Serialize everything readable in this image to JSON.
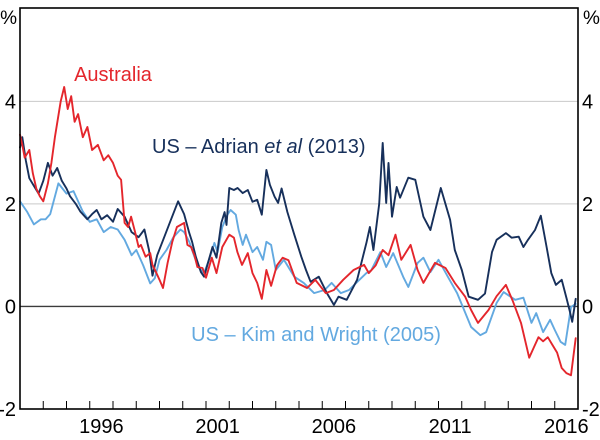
{
  "figure": {
    "percent_left": "%",
    "percent_right": "%"
  },
  "series_labels": {
    "australia": "Australia",
    "adrian_prefix": "US – Adrian ",
    "adrian_italic": "et al",
    "adrian_suffix": " (2013)",
    "kim": "US – Kim and Wright (2005)"
  },
  "colors": {
    "australia": "#E4262C",
    "adrian": "#17305B",
    "kim": "#63A9E0",
    "gridline": "#C9C9C9",
    "zero_line": "#3C3C3C",
    "frame": "#000000"
  },
  "chart_data": {
    "type": "line",
    "unit": "%",
    "xlim": [
      1993,
      2017
    ],
    "ylim": [
      -2,
      5.82
    ],
    "ytick_values": [
      -2,
      0,
      2,
      4
    ],
    "ytick_labels": [
      "-2",
      "0",
      "2",
      "4"
    ],
    "grid_values": [
      2,
      4
    ],
    "zero_line_value": 0,
    "xtick_label_years": [
      "1996",
      "2001",
      "2006",
      "2011",
      "2016"
    ],
    "xtick_label_positions": [
      1996.5,
      2001.5,
      2006.5,
      2011.5,
      2016.5
    ],
    "minor_tick_years_start": 1994,
    "minor_tick_years_end": 2016,
    "legend_position": "inline-labels",
    "grid": "horizontal-only",
    "series": [
      {
        "name": "US – Kim and Wright (2005)",
        "color": "#63A9E0",
        "points": [
          [
            1993.0,
            2.05
          ],
          [
            1993.3,
            1.85
          ],
          [
            1993.6,
            1.6
          ],
          [
            1993.9,
            1.7
          ],
          [
            1994.1,
            1.7
          ],
          [
            1994.3,
            1.8
          ],
          [
            1994.65,
            2.4
          ],
          [
            1995.0,
            2.2
          ],
          [
            1995.3,
            2.25
          ],
          [
            1995.7,
            1.85
          ],
          [
            1996.0,
            1.65
          ],
          [
            1996.3,
            1.7
          ],
          [
            1996.6,
            1.45
          ],
          [
            1996.9,
            1.55
          ],
          [
            1997.2,
            1.5
          ],
          [
            1997.5,
            1.3
          ],
          [
            1997.8,
            1.0
          ],
          [
            1998.0,
            1.1
          ],
          [
            1998.3,
            0.8
          ],
          [
            1998.6,
            0.45
          ],
          [
            1998.8,
            0.55
          ],
          [
            1999.0,
            0.91
          ],
          [
            1999.3,
            1.1
          ],
          [
            1999.6,
            1.35
          ],
          [
            1999.9,
            1.5
          ],
          [
            2000.06,
            1.45
          ],
          [
            2000.28,
            1.26
          ],
          [
            2000.5,
            0.97
          ],
          [
            2000.7,
            0.75
          ],
          [
            2000.92,
            0.65
          ],
          [
            2001.13,
            0.91
          ],
          [
            2001.36,
            1.24
          ],
          [
            2001.5,
            1.06
          ],
          [
            2001.7,
            1.55
          ],
          [
            2001.92,
            1.79
          ],
          [
            2002.06,
            1.88
          ],
          [
            2002.28,
            1.79
          ],
          [
            2002.4,
            1.49
          ],
          [
            2002.58,
            1.2
          ],
          [
            2002.72,
            1.4
          ],
          [
            2003.0,
            1.06
          ],
          [
            2003.2,
            1.16
          ],
          [
            2003.45,
            0.91
          ],
          [
            2003.6,
            1.26
          ],
          [
            2003.8,
            1.2
          ],
          [
            2004.0,
            0.71
          ],
          [
            2004.35,
            0.91
          ],
          [
            2004.8,
            0.58
          ],
          [
            2005.2,
            0.46
          ],
          [
            2005.65,
            0.26
          ],
          [
            2006.1,
            0.32
          ],
          [
            2006.4,
            0.46
          ],
          [
            2006.8,
            0.26
          ],
          [
            2007.15,
            0.32
          ],
          [
            2007.6,
            0.52
          ],
          [
            2007.9,
            0.65
          ],
          [
            2008.1,
            0.7
          ],
          [
            2008.5,
            1.06
          ],
          [
            2008.75,
            0.77
          ],
          [
            2009.05,
            1.04
          ],
          [
            2009.5,
            0.56
          ],
          [
            2009.7,
            0.38
          ],
          [
            2010.1,
            0.85
          ],
          [
            2010.35,
            0.95
          ],
          [
            2010.65,
            0.67
          ],
          [
            2011.0,
            0.91
          ],
          [
            2011.4,
            0.58
          ],
          [
            2011.8,
            0.26
          ],
          [
            2012.1,
            -0.07
          ],
          [
            2012.4,
            -0.4
          ],
          [
            2012.8,
            -0.56
          ],
          [
            2013.05,
            -0.5
          ],
          [
            2013.5,
            0.07
          ],
          [
            2013.8,
            0.28
          ],
          [
            2014.3,
            0.13
          ],
          [
            2014.65,
            0.17
          ],
          [
            2015.0,
            -0.32
          ],
          [
            2015.2,
            -0.13
          ],
          [
            2015.5,
            -0.5
          ],
          [
            2015.8,
            -0.26
          ],
          [
            2016.0,
            -0.46
          ],
          [
            2016.25,
            -0.69
          ],
          [
            2016.45,
            -0.75
          ],
          [
            2016.7,
            -0.01
          ],
          [
            2016.9,
            0.05
          ]
        ]
      },
      {
        "name": "US – Adrian et al (2013)",
        "color": "#17305B",
        "points": [
          [
            1993.0,
            3.1
          ],
          [
            1993.1,
            3.3
          ],
          [
            1993.25,
            2.85
          ],
          [
            1993.4,
            2.5
          ],
          [
            1993.6,
            2.35
          ],
          [
            1993.8,
            2.2
          ],
          [
            1994.0,
            2.45
          ],
          [
            1994.2,
            2.8
          ],
          [
            1994.4,
            2.55
          ],
          [
            1994.6,
            2.7
          ],
          [
            1994.8,
            2.45
          ],
          [
            1995.0,
            2.3
          ],
          [
            1995.15,
            2.15
          ],
          [
            1995.4,
            2.0
          ],
          [
            1995.6,
            1.85
          ],
          [
            1995.9,
            1.7
          ],
          [
            1996.1,
            1.8
          ],
          [
            1996.3,
            1.88
          ],
          [
            1996.5,
            1.7
          ],
          [
            1996.75,
            1.78
          ],
          [
            1997.0,
            1.65
          ],
          [
            1997.2,
            1.9
          ],
          [
            1997.5,
            1.75
          ],
          [
            1997.8,
            1.45
          ],
          [
            1998.1,
            1.35
          ],
          [
            1998.35,
            1.5
          ],
          [
            1998.55,
            1.1
          ],
          [
            1998.7,
            0.6
          ],
          [
            1998.9,
            1.0
          ],
          [
            1999.2,
            1.35
          ],
          [
            1999.5,
            1.7
          ],
          [
            1999.8,
            2.05
          ],
          [
            2000.06,
            1.8
          ],
          [
            2000.28,
            1.43
          ],
          [
            2000.4,
            1.26
          ],
          [
            2000.56,
            0.97
          ],
          [
            2000.78,
            0.67
          ],
          [
            2000.92,
            0.58
          ],
          [
            2001.06,
            0.81
          ],
          [
            2001.28,
            1.16
          ],
          [
            2001.45,
            0.95
          ],
          [
            2001.66,
            1.63
          ],
          [
            2001.8,
            1.84
          ],
          [
            2001.88,
            1.59
          ],
          [
            2002.0,
            2.31
          ],
          [
            2002.2,
            2.27
          ],
          [
            2002.36,
            2.31
          ],
          [
            2002.58,
            2.21
          ],
          [
            2002.8,
            2.27
          ],
          [
            2003.0,
            2.04
          ],
          [
            2003.2,
            2.08
          ],
          [
            2003.4,
            1.79
          ],
          [
            2003.6,
            2.66
          ],
          [
            2003.75,
            2.37
          ],
          [
            2003.95,
            2.14
          ],
          [
            2004.1,
            2.02
          ],
          [
            2004.25,
            2.3
          ],
          [
            2004.5,
            1.84
          ],
          [
            2004.8,
            1.4
          ],
          [
            2005.1,
            0.97
          ],
          [
            2005.3,
            0.71
          ],
          [
            2005.5,
            0.48
          ],
          [
            2005.85,
            0.58
          ],
          [
            2006.2,
            0.26
          ],
          [
            2006.5,
            0.03
          ],
          [
            2006.7,
            0.19
          ],
          [
            2007.05,
            0.13
          ],
          [
            2007.5,
            0.52
          ],
          [
            2007.9,
            1.24
          ],
          [
            2008.05,
            1.55
          ],
          [
            2008.2,
            1.1
          ],
          [
            2008.45,
            2.0
          ],
          [
            2008.6,
            3.19
          ],
          [
            2008.75,
            2.02
          ],
          [
            2008.85,
            2.8
          ],
          [
            2009.0,
            1.75
          ],
          [
            2009.2,
            2.33
          ],
          [
            2009.35,
            2.12
          ],
          [
            2009.7,
            2.51
          ],
          [
            2010.0,
            2.47
          ],
          [
            2010.35,
            1.75
          ],
          [
            2010.65,
            1.49
          ],
          [
            2011.1,
            2.31
          ],
          [
            2011.5,
            1.69
          ],
          [
            2011.7,
            1.1
          ],
          [
            2012.0,
            0.71
          ],
          [
            2012.3,
            0.19
          ],
          [
            2012.7,
            0.13
          ],
          [
            2013.0,
            0.25
          ],
          [
            2013.3,
            1.06
          ],
          [
            2013.5,
            1.3
          ],
          [
            2013.9,
            1.43
          ],
          [
            2014.15,
            1.34
          ],
          [
            2014.45,
            1.36
          ],
          [
            2014.65,
            1.16
          ],
          [
            2014.85,
            1.3
          ],
          [
            2015.15,
            1.49
          ],
          [
            2015.4,
            1.77
          ],
          [
            2015.65,
            1.16
          ],
          [
            2015.85,
            0.65
          ],
          [
            2016.05,
            0.42
          ],
          [
            2016.3,
            0.52
          ],
          [
            2016.5,
            0.17
          ],
          [
            2016.65,
            -0.1
          ],
          [
            2016.75,
            -0.3
          ],
          [
            2016.9,
            0.15
          ]
        ]
      },
      {
        "name": "Australia",
        "color": "#E4262C",
        "points": [
          [
            1993.0,
            3.35
          ],
          [
            1993.1,
            3.15
          ],
          [
            1993.2,
            2.9
          ],
          [
            1993.4,
            3.05
          ],
          [
            1993.55,
            2.6
          ],
          [
            1993.7,
            2.3
          ],
          [
            1993.85,
            2.15
          ],
          [
            1994.0,
            2.05
          ],
          [
            1994.2,
            2.4
          ],
          [
            1994.35,
            2.8
          ],
          [
            1994.5,
            3.3
          ],
          [
            1994.75,
            4.0
          ],
          [
            1994.9,
            4.28
          ],
          [
            1995.05,
            3.85
          ],
          [
            1995.2,
            4.1
          ],
          [
            1995.35,
            3.6
          ],
          [
            1995.5,
            3.75
          ],
          [
            1995.7,
            3.3
          ],
          [
            1995.9,
            3.5
          ],
          [
            1996.1,
            3.05
          ],
          [
            1996.35,
            3.15
          ],
          [
            1996.6,
            2.85
          ],
          [
            1996.8,
            2.95
          ],
          [
            1997.0,
            2.8
          ],
          [
            1997.2,
            2.55
          ],
          [
            1997.35,
            2.47
          ],
          [
            1997.5,
            1.63
          ],
          [
            1997.65,
            1.55
          ],
          [
            1997.78,
            1.75
          ],
          [
            1997.95,
            1.45
          ],
          [
            1998.1,
            1.16
          ],
          [
            1998.2,
            1.2
          ],
          [
            1998.4,
            0.97
          ],
          [
            1998.6,
            1.04
          ],
          [
            1998.7,
            0.81
          ],
          [
            1998.85,
            0.67
          ],
          [
            1999.0,
            0.52
          ],
          [
            1999.15,
            0.36
          ],
          [
            1999.35,
            0.85
          ],
          [
            1999.55,
            1.26
          ],
          [
            1999.75,
            1.55
          ],
          [
            2000.06,
            1.63
          ],
          [
            2000.2,
            1.2
          ],
          [
            2000.36,
            1.16
          ],
          [
            2000.5,
            1.0
          ],
          [
            2000.63,
            0.77
          ],
          [
            2000.85,
            0.75
          ],
          [
            2001.0,
            0.56
          ],
          [
            2001.25,
            0.95
          ],
          [
            2001.45,
            0.65
          ],
          [
            2001.7,
            1.16
          ],
          [
            2002.0,
            1.4
          ],
          [
            2002.2,
            1.34
          ],
          [
            2002.35,
            1.06
          ],
          [
            2002.55,
            0.81
          ],
          [
            2002.8,
            1.04
          ],
          [
            2003.0,
            0.65
          ],
          [
            2003.2,
            0.46
          ],
          [
            2003.4,
            0.15
          ],
          [
            2003.6,
            0.71
          ],
          [
            2003.8,
            0.4
          ],
          [
            2004.05,
            0.8
          ],
          [
            2004.3,
            0.95
          ],
          [
            2004.55,
            0.9
          ],
          [
            2004.9,
            0.46
          ],
          [
            2005.35,
            0.36
          ],
          [
            2005.7,
            0.52
          ],
          [
            2006.15,
            0.26
          ],
          [
            2006.5,
            0.32
          ],
          [
            2006.9,
            0.52
          ],
          [
            2007.35,
            0.71
          ],
          [
            2007.8,
            0.81
          ],
          [
            2008.0,
            0.65
          ],
          [
            2008.3,
            0.8
          ],
          [
            2008.6,
            1.1
          ],
          [
            2008.85,
            1.0
          ],
          [
            2009.15,
            1.4
          ],
          [
            2009.4,
            0.91
          ],
          [
            2009.8,
            1.2
          ],
          [
            2010.1,
            0.71
          ],
          [
            2010.35,
            0.46
          ],
          [
            2010.85,
            0.85
          ],
          [
            2011.3,
            0.75
          ],
          [
            2011.7,
            0.46
          ],
          [
            2012.15,
            0.19
          ],
          [
            2012.4,
            -0.07
          ],
          [
            2012.7,
            -0.32
          ],
          [
            2013.15,
            -0.07
          ],
          [
            2013.5,
            0.2
          ],
          [
            2013.9,
            0.42
          ],
          [
            2014.2,
            0.1
          ],
          [
            2014.55,
            -0.32
          ],
          [
            2014.9,
            -1.0
          ],
          [
            2015.1,
            -0.8
          ],
          [
            2015.3,
            -0.6
          ],
          [
            2015.5,
            -0.68
          ],
          [
            2015.7,
            -0.6
          ],
          [
            2015.9,
            -0.75
          ],
          [
            2016.1,
            -0.9
          ],
          [
            2016.3,
            -1.2
          ],
          [
            2016.5,
            -1.3
          ],
          [
            2016.7,
            -1.34
          ],
          [
            2016.9,
            -0.62
          ]
        ]
      }
    ]
  }
}
